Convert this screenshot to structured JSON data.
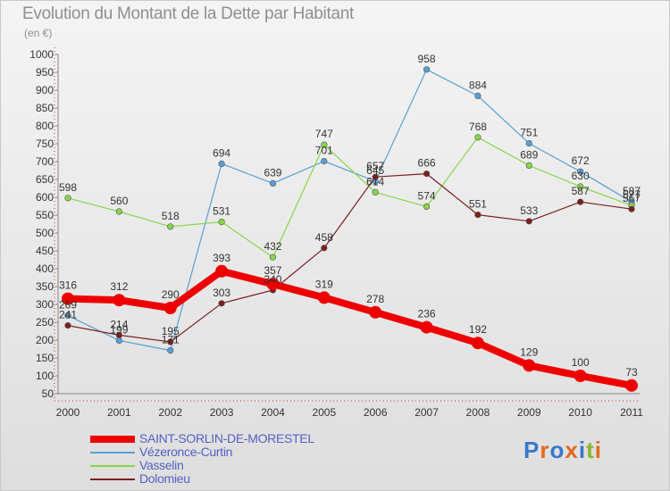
{
  "title": "Evolution du Montant de la Dette par Habitant",
  "subtitle": "(en €)",
  "logo": {
    "text": "Proxiti",
    "colors": [
      "#3a78c8",
      "#e26a1c",
      "#3a78c8",
      "#e26a1c",
      "#3a78c8",
      "#8ab52f",
      "#e26a1c"
    ]
  },
  "chart_data": {
    "type": "line",
    "x": [
      "2000",
      "2001",
      "2002",
      "2003",
      "2004",
      "2005",
      "2006",
      "2007",
      "2008",
      "2009",
      "2010",
      "2011"
    ],
    "ylim": [
      50,
      1000
    ],
    "yticks": [
      50,
      100,
      150,
      200,
      250,
      300,
      350,
      400,
      450,
      500,
      550,
      600,
      650,
      700,
      750,
      800,
      850,
      900,
      950,
      1000
    ],
    "grid": false,
    "legend_position": "bottom-left",
    "series": [
      {
        "name": "SAINT-SORLIN-DE-MORESTEL",
        "color": "#ee0000",
        "values": [
          316,
          312,
          290,
          393,
          357,
          319,
          278,
          236,
          192,
          129,
          100,
          73
        ]
      },
      {
        "name": "Vézeronce-Curtin",
        "color": "#5b9fd4",
        "values": [
          269,
          199,
          171,
          694,
          639,
          701,
          645,
          958,
          884,
          751,
          672,
          587
        ]
      },
      {
        "name": "Vasselin",
        "color": "#88d64a",
        "values": [
          598,
          560,
          518,
          531,
          432,
          747,
          614,
          574,
          768,
          689,
          630,
          577
        ]
      },
      {
        "name": "Dolomieu",
        "color": "#7b1f1f",
        "values": [
          241,
          214,
          195,
          303,
          340,
          458,
          657,
          666,
          551,
          533,
          587,
          567
        ]
      }
    ]
  }
}
